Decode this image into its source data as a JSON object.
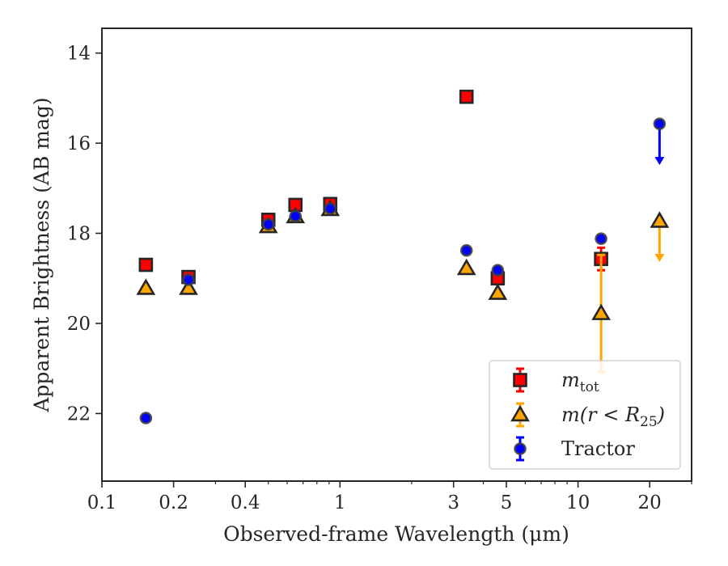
{
  "chart_data": {
    "type": "scatter",
    "title": "",
    "xlabel": "Observed-frame Wavelength (μm)",
    "ylabel": "Apparent Brightness (AB mag)",
    "xscale": "log",
    "xlim": [
      0.1,
      30
    ],
    "ylim": [
      23.5,
      13.45
    ],
    "y_inverted": true,
    "grid": false,
    "legend_position": "lower-right",
    "xticks": [
      {
        "value": 0.1,
        "label": "0.1"
      },
      {
        "value": 0.2,
        "label": "0.2"
      },
      {
        "value": 0.4,
        "label": "0.4"
      },
      {
        "value": 1,
        "label": "1"
      },
      {
        "value": 3,
        "label": "3"
      },
      {
        "value": 5,
        "label": "5"
      },
      {
        "value": 10,
        "label": "10"
      },
      {
        "value": 20,
        "label": "20"
      }
    ],
    "yticks": [
      {
        "value": 14,
        "label": "14"
      },
      {
        "value": 16,
        "label": "16"
      },
      {
        "value": 18,
        "label": "18"
      },
      {
        "value": 20,
        "label": "20"
      },
      {
        "value": 22,
        "label": "22"
      }
    ],
    "series": [
      {
        "name": "m_tot",
        "legend_main": "m",
        "legend_sub": "tot",
        "marker": "square",
        "fill": "#ff0000",
        "edge": "#262626",
        "errcolor": "#ff0000",
        "points": [
          {
            "x": 0.153,
            "y": 18.7
          },
          {
            "x": 0.231,
            "y": 18.97
          },
          {
            "x": 0.5,
            "y": 17.7
          },
          {
            "x": 0.65,
            "y": 17.37
          },
          {
            "x": 0.91,
            "y": 17.35
          },
          {
            "x": 3.4,
            "y": 14.97
          },
          {
            "x": 4.6,
            "y": 19.0
          },
          {
            "x": 12.5,
            "y": 18.57,
            "err": 0.25
          }
        ]
      },
      {
        "name": "m(r < R_25)",
        "legend_main": "m(r < R",
        "legend_sub": "25",
        "legend_end": ")",
        "marker": "triangle",
        "fill": "#ffa500",
        "edge": "#262626",
        "errcolor": "#ffa500",
        "points": [
          {
            "x": 0.153,
            "y": 19.22
          },
          {
            "x": 0.231,
            "y": 19.22
          },
          {
            "x": 0.5,
            "y": 17.85
          },
          {
            "x": 0.65,
            "y": 17.63
          },
          {
            "x": 0.91,
            "y": 17.47
          },
          {
            "x": 3.4,
            "y": 18.78
          },
          {
            "x": 4.6,
            "y": 19.33
          },
          {
            "x": 12.5,
            "y": 19.78,
            "err": 1.3
          },
          {
            "x": 22,
            "y": 17.73,
            "upper_limit": 18.6
          }
        ]
      },
      {
        "name": "Tractor",
        "legend_main": "Tractor",
        "marker": "circle",
        "fill": "#0000ff",
        "edge": "#262626",
        "errcolor": "#0000ff",
        "points": [
          {
            "x": 0.153,
            "y": 22.1
          },
          {
            "x": 0.231,
            "y": 19.03
          },
          {
            "x": 0.5,
            "y": 17.8
          },
          {
            "x": 0.65,
            "y": 17.62
          },
          {
            "x": 0.91,
            "y": 17.45
          },
          {
            "x": 3.4,
            "y": 18.38
          },
          {
            "x": 4.6,
            "y": 18.82
          },
          {
            "x": 12.5,
            "y": 18.12
          },
          {
            "x": 22,
            "y": 15.57,
            "upper_limit": 16.45
          }
        ]
      }
    ]
  }
}
